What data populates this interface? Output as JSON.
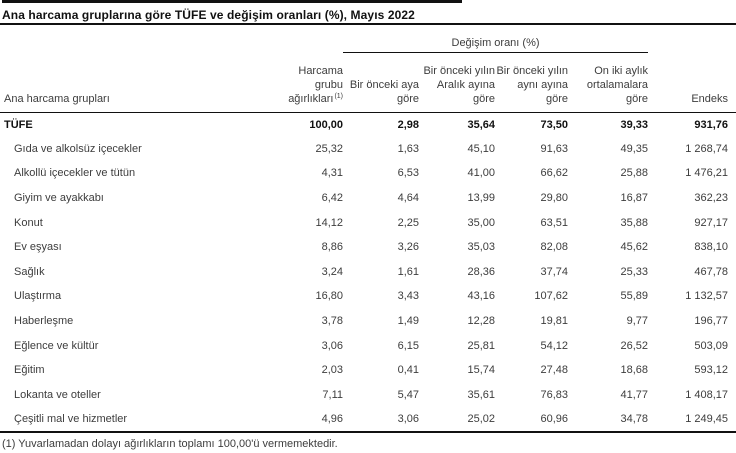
{
  "title": "Ana harcama gruplarına göre TÜFE ve değişim oranları (%), Mayıs 2022",
  "colors": {
    "background": "#ffffff",
    "text": "#3d3d3d",
    "emphasis": "#111111",
    "rule": "#111111"
  },
  "table": {
    "group_header": "Değişim oranı (%)",
    "columns": [
      "Ana harcama grupları",
      "Harcama grubu ağırlıkları",
      "Bir önceki aya göre",
      "Bir önceki yılın Aralık ayına göre",
      "Bir önceki yılın aynı ayına göre",
      "On iki aylık ortalamalara göre",
      "Endeks"
    ],
    "weights_marker": "(1)",
    "rows": [
      {
        "label": "TÜFE",
        "bold": true,
        "values": [
          "100,00",
          "2,98",
          "35,64",
          "73,50",
          "39,33",
          "931,76"
        ]
      },
      {
        "label": "Gıda ve alkolsüz içecekler",
        "bold": false,
        "values": [
          "25,32",
          "1,63",
          "45,10",
          "91,63",
          "49,35",
          "1 268,74"
        ]
      },
      {
        "label": "Alkollü içecekler ve tütün",
        "bold": false,
        "values": [
          "4,31",
          "6,53",
          "41,00",
          "66,62",
          "25,88",
          "1 476,21"
        ]
      },
      {
        "label": "Giyim ve ayakkabı",
        "bold": false,
        "values": [
          "6,42",
          "4,64",
          "13,99",
          "29,80",
          "16,87",
          "362,23"
        ]
      },
      {
        "label": "Konut",
        "bold": false,
        "values": [
          "14,12",
          "2,25",
          "35,00",
          "63,51",
          "35,88",
          "927,17"
        ]
      },
      {
        "label": "Ev eşyası",
        "bold": false,
        "values": [
          "8,86",
          "3,26",
          "35,03",
          "82,08",
          "45,62",
          "838,10"
        ]
      },
      {
        "label": "Sağlık",
        "bold": false,
        "values": [
          "3,24",
          "1,61",
          "28,36",
          "37,74",
          "25,33",
          "467,78"
        ]
      },
      {
        "label": "Ulaştırma",
        "bold": false,
        "values": [
          "16,80",
          "3,43",
          "43,16",
          "107,62",
          "55,89",
          "1 132,57"
        ]
      },
      {
        "label": "Haberleşme",
        "bold": false,
        "values": [
          "3,78",
          "1,49",
          "12,28",
          "19,81",
          "9,77",
          "196,77"
        ]
      },
      {
        "label": "Eğlence ve kültür",
        "bold": false,
        "values": [
          "3,06",
          "6,15",
          "25,81",
          "54,12",
          "26,52",
          "503,09"
        ]
      },
      {
        "label": "Eğitim",
        "bold": false,
        "values": [
          "2,03",
          "0,41",
          "15,74",
          "27,48",
          "18,68",
          "593,12"
        ]
      },
      {
        "label": "Lokanta ve oteller",
        "bold": false,
        "values": [
          "7,11",
          "5,47",
          "35,61",
          "76,83",
          "41,77",
          "1 408,17"
        ]
      },
      {
        "label": "Çeşitli mal ve hizmetler",
        "bold": false,
        "values": [
          "4,96",
          "3,06",
          "25,02",
          "60,96",
          "34,78",
          "1 249,45"
        ]
      }
    ]
  },
  "footnote": "(1) Yuvarlamadan dolayı ağırlıkların toplamı 100,00'ü vermemektedir."
}
